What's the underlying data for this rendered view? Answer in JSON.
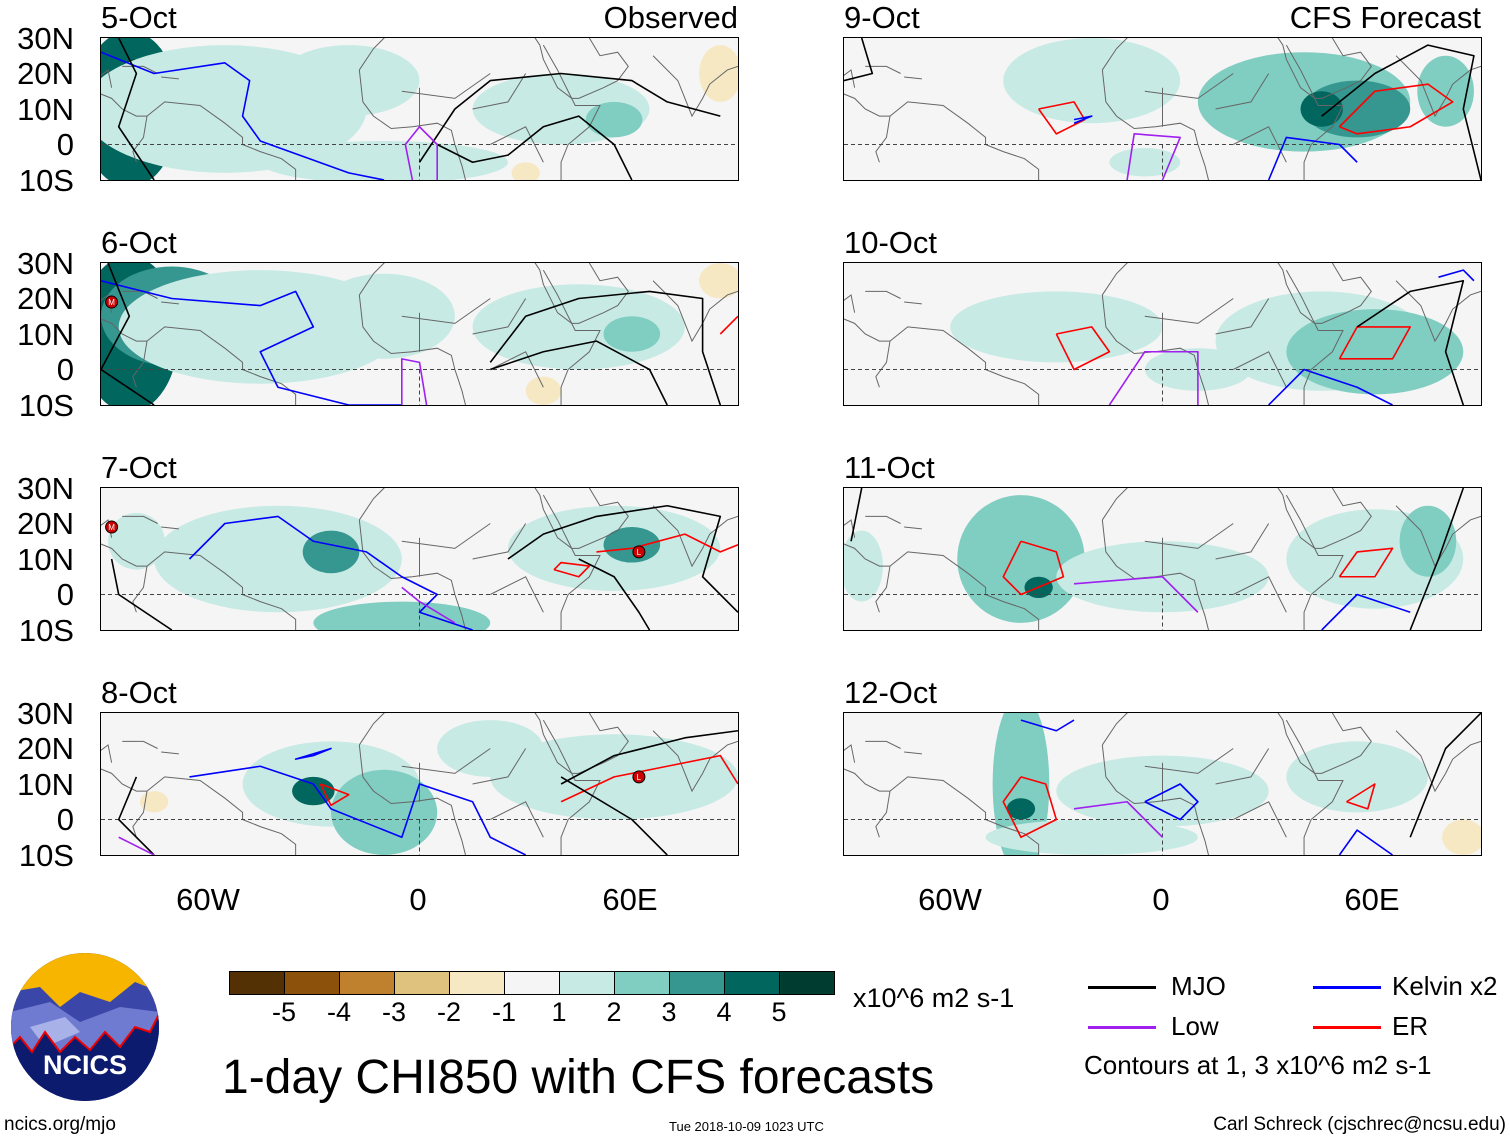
{
  "panels": [
    {
      "date": "5-Oct",
      "source": "Observed",
      "column": "left"
    },
    {
      "date": "6-Oct",
      "column": "left"
    },
    {
      "date": "7-Oct",
      "column": "left"
    },
    {
      "date": "8-Oct",
      "column": "left"
    },
    {
      "date": "9-Oct",
      "source": "CFS Forecast",
      "column": "right"
    },
    {
      "date": "10-Oct",
      "column": "right"
    },
    {
      "date": "11-Oct",
      "column": "right"
    },
    {
      "date": "12-Oct",
      "column": "right"
    }
  ],
  "lat_labels": [
    "30N",
    "20N",
    "10N",
    "0",
    "10S"
  ],
  "lon_labels": [
    "60W",
    "0",
    "60E"
  ],
  "colorbar": {
    "colors": [
      "#543005",
      "#8c510a",
      "#bf812d",
      "#dfc27d",
      "#f6e8c3",
      "#f5f5f5",
      "#c7eae5",
      "#80cdc1",
      "#35978f",
      "#01665e",
      "#003c30"
    ],
    "labels": [
      "-5",
      "-4",
      "-3",
      "-2",
      "-1",
      "1",
      "2",
      "3",
      "4",
      "5"
    ],
    "units": "x10^6 m2 s-1"
  },
  "legend": {
    "items": [
      {
        "label": "MJO",
        "color": "#000000"
      },
      {
        "label": "Kelvin x2",
        "color": "#0000ff"
      },
      {
        "label": "Low",
        "color": "#a020f0"
      },
      {
        "label": "ER",
        "color": "#ff0000"
      }
    ],
    "note": "Contours at 1, 3 x10^6 m2 s-1"
  },
  "title": "1-day CHI850 with CFS forecasts",
  "logo": {
    "text": "NCICS"
  },
  "footer": {
    "left": "ncics.org/mjo",
    "center": "Tue 2018-10-09 1023 UTC",
    "right": "Carl Schreck (cjschrec@ncsu.edu)"
  },
  "storm_markers": [
    {
      "panel": "6-Oct",
      "symbol": "M"
    },
    {
      "panel": "7-Oct",
      "symbol": "M"
    },
    {
      "panel": "7-Oct",
      "symbol": "L"
    },
    {
      "panel": "8-Oct",
      "symbol": "L"
    }
  ]
}
